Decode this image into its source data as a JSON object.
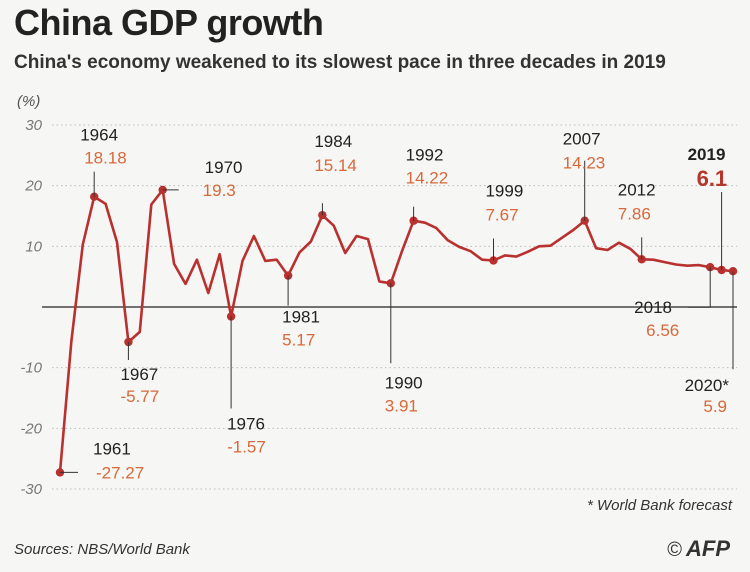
{
  "colors": {
    "line": "#b8312f",
    "value_text": "#d9683a",
    "highlight_value": "#b5362b",
    "grid": "#bdbdbd",
    "zero_axis": "#222222",
    "background": "#f6f6f4"
  },
  "header": {
    "title": "China GDP growth",
    "subtitle": "China's economy weakened to its slowest pace in three decades in 2019"
  },
  "footer": {
    "footnote": "* World Bank forecast",
    "source": "Sources: NBS/World Bank",
    "copyright_symbol": "©",
    "credit": "AFP"
  },
  "chart_data": {
    "type": "line",
    "title": "China GDP growth",
    "subtitle": "China's economy weakened to its slowest pace in three decades in 2019",
    "ylabel": "(%)",
    "xlabel": "",
    "ylim": [
      -30,
      30
    ],
    "yticks": [
      30,
      20,
      10,
      -10,
      -20,
      -30
    ],
    "grid": true,
    "x": [
      1961,
      1962,
      1963,
      1964,
      1965,
      1966,
      1967,
      1968,
      1969,
      1970,
      1971,
      1972,
      1973,
      1974,
      1975,
      1976,
      1977,
      1978,
      1979,
      1980,
      1981,
      1982,
      1983,
      1984,
      1985,
      1986,
      1987,
      1988,
      1989,
      1990,
      1991,
      1992,
      1993,
      1994,
      1995,
      1996,
      1997,
      1998,
      1999,
      2000,
      2001,
      2002,
      2003,
      2004,
      2005,
      2006,
      2007,
      2008,
      2009,
      2010,
      2011,
      2012,
      2013,
      2014,
      2015,
      2016,
      2017,
      2018,
      2019,
      2020
    ],
    "series": [
      {
        "name": "GDP growth (%)",
        "values": [
          -27.27,
          -5.6,
          10.3,
          18.18,
          17.0,
          10.7,
          -5.77,
          -4.1,
          16.9,
          19.3,
          7.1,
          3.8,
          7.8,
          2.3,
          8.7,
          -1.57,
          7.6,
          11.7,
          7.6,
          7.8,
          5.17,
          9.0,
          10.8,
          15.14,
          13.4,
          8.9,
          11.7,
          11.2,
          4.2,
          3.91,
          9.3,
          14.22,
          13.9,
          13.0,
          11.0,
          9.9,
          9.2,
          7.8,
          7.67,
          8.5,
          8.3,
          9.1,
          10.0,
          10.1,
          11.4,
          12.7,
          14.23,
          9.7,
          9.4,
          10.6,
          9.6,
          7.86,
          7.8,
          7.4,
          7.0,
          6.8,
          6.9,
          6.56,
          6.1,
          5.9
        ]
      }
    ],
    "annotations": [
      {
        "year": "1961",
        "value": "-27.27"
      },
      {
        "year": "1964",
        "value": "18.18"
      },
      {
        "year": "1967",
        "value": "-5.77"
      },
      {
        "year": "1970",
        "value": "19.3"
      },
      {
        "year": "1976",
        "value": "-1.57"
      },
      {
        "year": "1981",
        "value": "5.17"
      },
      {
        "year": "1984",
        "value": "15.14"
      },
      {
        "year": "1990",
        "value": "3.91"
      },
      {
        "year": "1992",
        "value": "14.22"
      },
      {
        "year": "1999",
        "value": "7.67"
      },
      {
        "year": "2007",
        "value": "14.23"
      },
      {
        "year": "2012",
        "value": "7.86"
      },
      {
        "year": "2018",
        "value": "6.56"
      },
      {
        "year": "2019",
        "value": "6.1"
      },
      {
        "year": "2020*",
        "value": "5.9"
      }
    ]
  }
}
